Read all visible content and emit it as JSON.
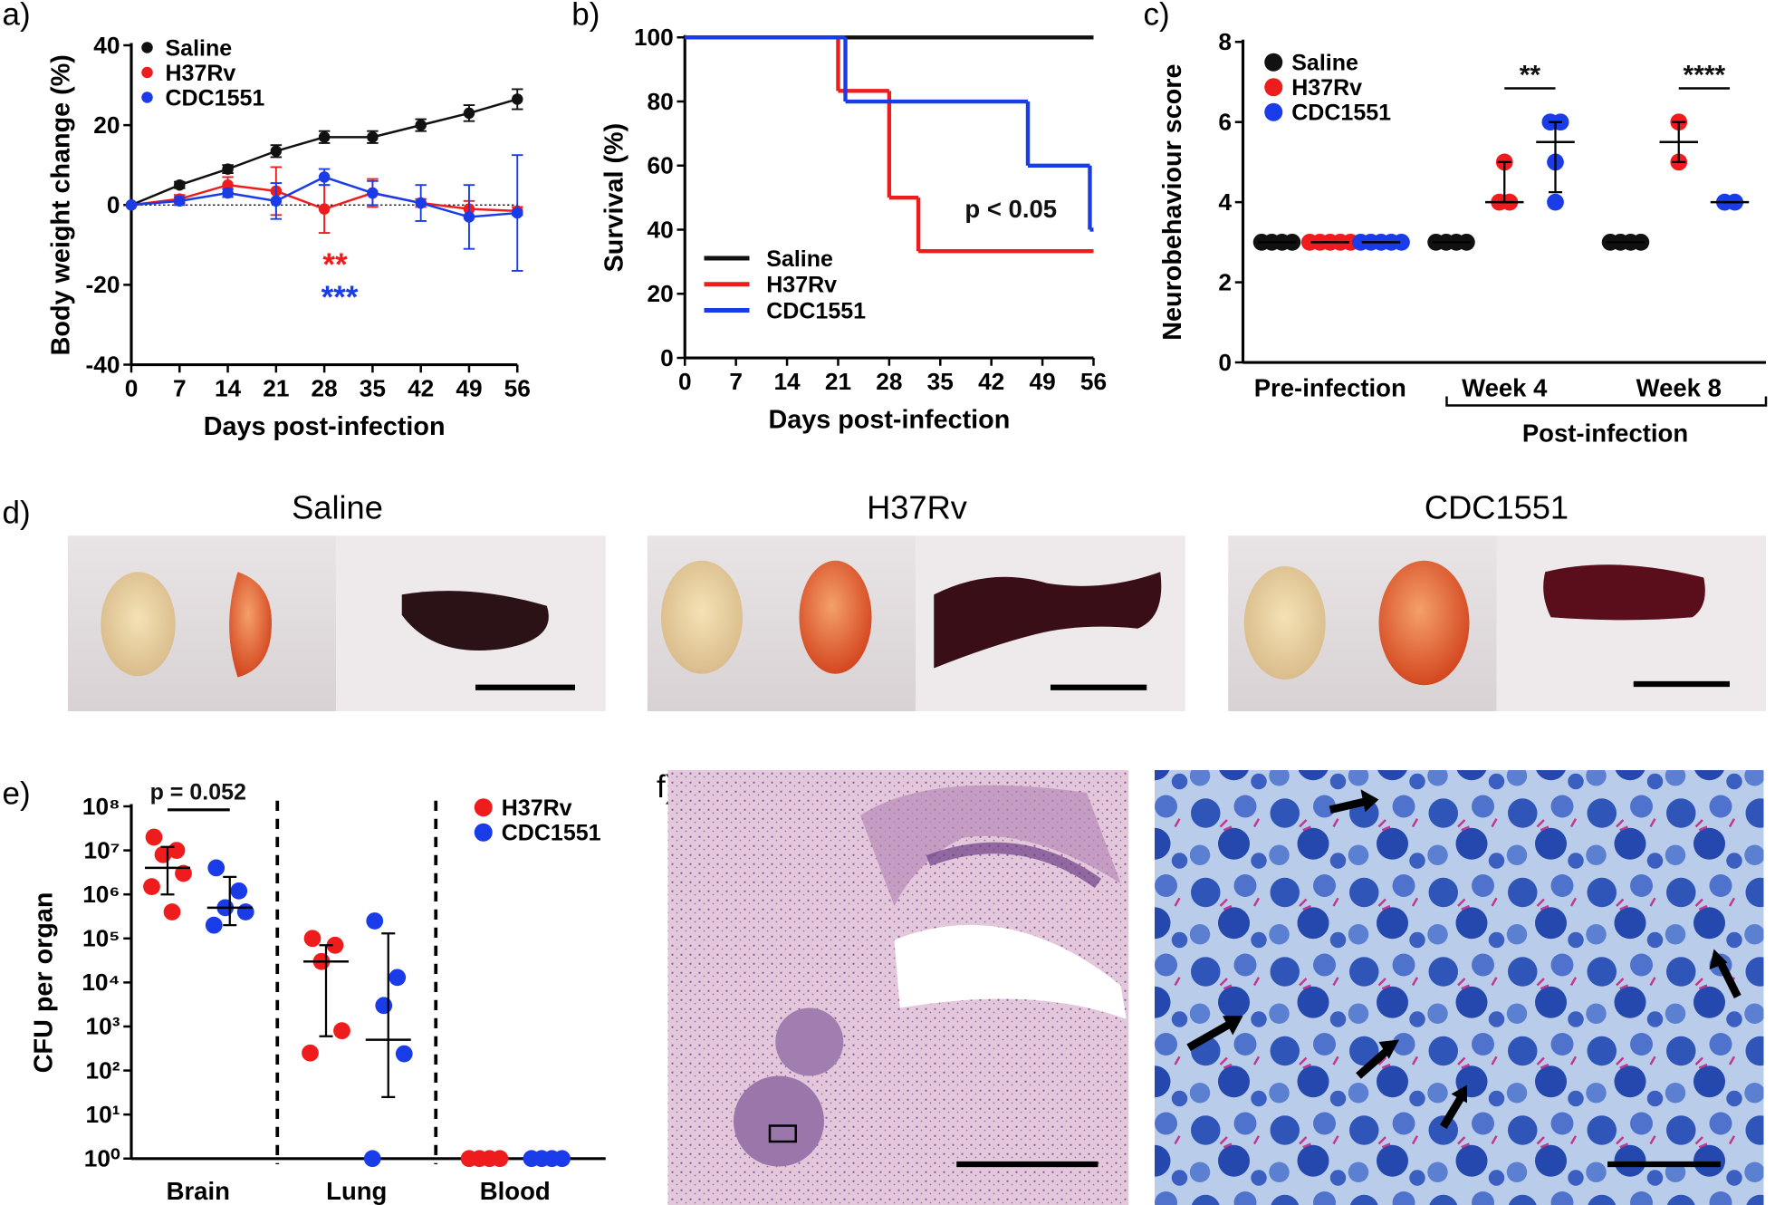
{
  "chart_data": [
    {
      "type": "line",
      "panel": "a)",
      "xlabel": "Days post-infection",
      "ylabel": "Body weight change (%)",
      "x": [
        0,
        7,
        14,
        21,
        28,
        35,
        42,
        49,
        56
      ],
      "xlim": [
        0,
        56
      ],
      "xticks": [
        0,
        7,
        14,
        21,
        28,
        35,
        42,
        49,
        56
      ],
      "ylim": [
        -40,
        40
      ],
      "yticks": [
        40,
        20,
        0,
        -20,
        -40
      ],
      "zero_line": true,
      "series": [
        {
          "name": "Saline",
          "color": "#111111",
          "values": [
            0,
            5,
            9,
            13.5,
            17,
            17,
            20,
            23,
            26.5
          ],
          "errors": [
            0,
            0.8,
            1,
            1.5,
            1.5,
            1.5,
            1.5,
            2,
            2.5
          ]
        },
        {
          "name": "H37Rv",
          "color": "#ee1c1c",
          "values": [
            0,
            1.5,
            5,
            3.5,
            -1,
            3,
            0.5,
            -1,
            -1.5
          ],
          "errors": [
            0,
            1,
            2,
            6,
            6,
            3.5,
            1,
            2,
            1
          ]
        },
        {
          "name": "CDC1551",
          "color": "#1a3be8",
          "values": [
            0,
            1,
            3,
            1,
            7,
            3,
            0.5,
            -3,
            -2
          ],
          "errors": [
            0,
            1,
            1,
            4.5,
            2,
            3,
            4.5,
            8,
            14.5
          ]
        }
      ],
      "annotations": [
        {
          "text": "**",
          "color": "#ee1c1c"
        },
        {
          "text": "***",
          "color": "#1a3be8"
        }
      ]
    },
    {
      "type": "step",
      "panel": "b)",
      "xlabel": "Days post-infection",
      "ylabel": "Survival (%)",
      "xlim": [
        0,
        56
      ],
      "xticks": [
        0,
        7,
        14,
        21,
        28,
        35,
        42,
        49,
        56
      ],
      "ylim": [
        0,
        100
      ],
      "yticks": [
        0,
        20,
        40,
        60,
        80,
        100
      ],
      "series": [
        {
          "name": "Saline",
          "color": "#111111",
          "x": [
            0
          ],
          "values": [
            100
          ]
        },
        {
          "name": "H37Rv",
          "color": "#ee1c1c",
          "x": [
            0,
            21,
            28,
            32
          ],
          "values": [
            100,
            83.3,
            50,
            33.3
          ]
        },
        {
          "name": "CDC1551",
          "color": "#1a3be8",
          "x": [
            0,
            22,
            47,
            55.5
          ],
          "values": [
            100,
            80,
            60,
            40
          ]
        }
      ],
      "annotations": [
        {
          "text": "p < 0.05",
          "color": "#111111"
        }
      ]
    },
    {
      "type": "dot",
      "panel": "c)",
      "ylabel": "Neurobehaviour score",
      "group_label": "Post-infection",
      "categories": [
        "Pre-infection",
        "Week 4",
        "Week 8"
      ],
      "ylim": [
        0,
        8
      ],
      "yticks": [
        0,
        2,
        4,
        6,
        8
      ],
      "series": [
        {
          "name": "Saline",
          "color": "#111111",
          "values": [
            [
              3,
              3,
              3,
              3
            ],
            [
              3,
              3,
              3,
              3
            ],
            [
              3,
              3,
              3,
              3
            ]
          ],
          "center": [
            3,
            3,
            3
          ],
          "low": [
            3,
            3,
            3
          ],
          "high": [
            3,
            3,
            3
          ]
        },
        {
          "name": "H37Rv",
          "color": "#ee1c1c",
          "values": [
            [
              3,
              3,
              3,
              3,
              3
            ],
            [
              4,
              4,
              5
            ],
            [
              6,
              5
            ]
          ],
          "center": [
            3,
            4,
            5.5
          ],
          "low": [
            3,
            4,
            5
          ],
          "high": [
            3,
            5,
            6
          ]
        },
        {
          "name": "CDC1551",
          "color": "#1a3be8",
          "values": [
            [
              3,
              3,
              3,
              3,
              3
            ],
            [
              6,
              6,
              5,
              4
            ],
            [
              4,
              4
            ]
          ],
          "center": [
            3,
            5.5,
            4
          ],
          "low": [
            3,
            4.25,
            4
          ],
          "high": [
            3,
            6,
            4
          ]
        }
      ],
      "annotations": [
        {
          "text": "**",
          "color": "#111111"
        },
        {
          "text": "****",
          "color": "#111111"
        }
      ]
    },
    {
      "type": "dot",
      "panel": "e)",
      "ylabel": "CFU per organ",
      "log_y": true,
      "categories": [
        "Brain",
        "Lung",
        "Blood"
      ],
      "ylim": [
        1,
        100000000
      ],
      "yticks": [
        {
          "value": 1,
          "label": "10⁰"
        },
        {
          "value": 10,
          "label": "10¹"
        },
        {
          "value": 100,
          "label": "10²"
        },
        {
          "value": 1000,
          "label": "10³"
        },
        {
          "value": 10000,
          "label": "10⁴"
        },
        {
          "value": 100000,
          "label": "10⁵"
        },
        {
          "value": 1000000,
          "label": "10⁶"
        },
        {
          "value": 10000000,
          "label": "10⁷"
        },
        {
          "value": 100000000,
          "label": "10⁸"
        }
      ],
      "series": [
        {
          "name": "H37Rv",
          "color": "#ee1c1c",
          "values": [
            [
              20000000,
              10000000,
              8000000,
              3000000,
              1500000,
              400000
            ],
            [
              100000,
              70000,
              30000,
              800,
              250
            ],
            [
              1,
              1,
              1,
              1
            ]
          ],
          "center": [
            4000000,
            30000,
            null
          ],
          "low": [
            1000000,
            600,
            null
          ],
          "high": [
            12000000,
            70000,
            null
          ]
        },
        {
          "name": "CDC1551",
          "color": "#1a3be8",
          "values": [
            [
              4000000,
              1200000,
              500000,
              400000,
              200000
            ],
            [
              250000,
              13000,
              3000,
              240,
              1
            ],
            [
              1,
              1,
              1,
              1
            ]
          ],
          "center": [
            500000,
            500,
            null
          ],
          "low": [
            200000,
            25,
            null
          ],
          "high": [
            2500000,
            130000,
            null
          ]
        }
      ],
      "annotations": [
        {
          "text": "p = 0.052",
          "color": "#111111"
        }
      ]
    }
  ],
  "photos": {
    "panel": "d)",
    "titles": [
      "Saline",
      "H37Rv",
      "CDC1551"
    ]
  },
  "micrographs": {
    "panel": "f)"
  }
}
